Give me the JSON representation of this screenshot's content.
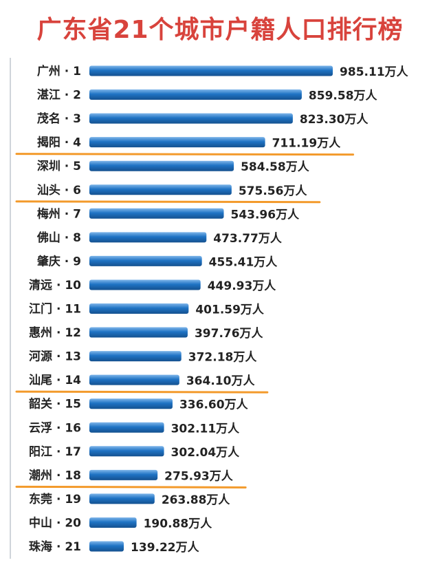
{
  "chart_data": {
    "type": "bar",
    "orientation": "horizontal",
    "title": "广东省21个城市户籍人口排行榜",
    "categories": [
      "广州 · 1",
      "湛江 · 2",
      "茂名 · 3",
      "揭阳 · 4",
      "深圳 · 5",
      "汕头 · 6",
      "梅州 · 7",
      "佛山 · 8",
      "肇庆 · 9",
      "清远 · 10",
      "江门 · 11",
      "惠州 · 12",
      "河源 · 13",
      "汕尾 · 14",
      "韶关 · 15",
      "云浮 · 16",
      "阳江 · 17",
      "潮州 · 18",
      "东莞 · 19",
      "中山 · 20",
      "珠海 · 21"
    ],
    "values": [
      985.11,
      859.58,
      823.3,
      711.19,
      584.58,
      575.56,
      543.96,
      473.77,
      455.41,
      449.93,
      401.59,
      397.76,
      372.18,
      364.1,
      336.6,
      302.11,
      302.04,
      275.93,
      263.88,
      190.88,
      139.22
    ],
    "value_labels": [
      "985.11万人",
      "859.58万人",
      "823.30万人",
      "711.19万人",
      "584.58万人",
      "575.56万人",
      "543.96万人",
      "473.77万人",
      "455.41万人",
      "449.93万人",
      "401.59万人",
      "397.76万人",
      "372.18万人",
      "364.10万人",
      "336.60万人",
      "302.11万人",
      "302.04万人",
      "275.93万人",
      "263.88万人",
      "190.88万人",
      "139.22万人"
    ],
    "underlined_categories": [
      "揭阳 · 4",
      "汕头 · 6",
      "汕尾 · 14",
      "潮州 · 18"
    ],
    "grid": false,
    "legend": "none",
    "colors": {
      "title": "#d8433c",
      "bar": "#1f73c4",
      "bar_highlight": "#7fb6ea",
      "bar_shadow": "#15518f",
      "underline": "#f39a2b",
      "text": "#222222"
    }
  }
}
